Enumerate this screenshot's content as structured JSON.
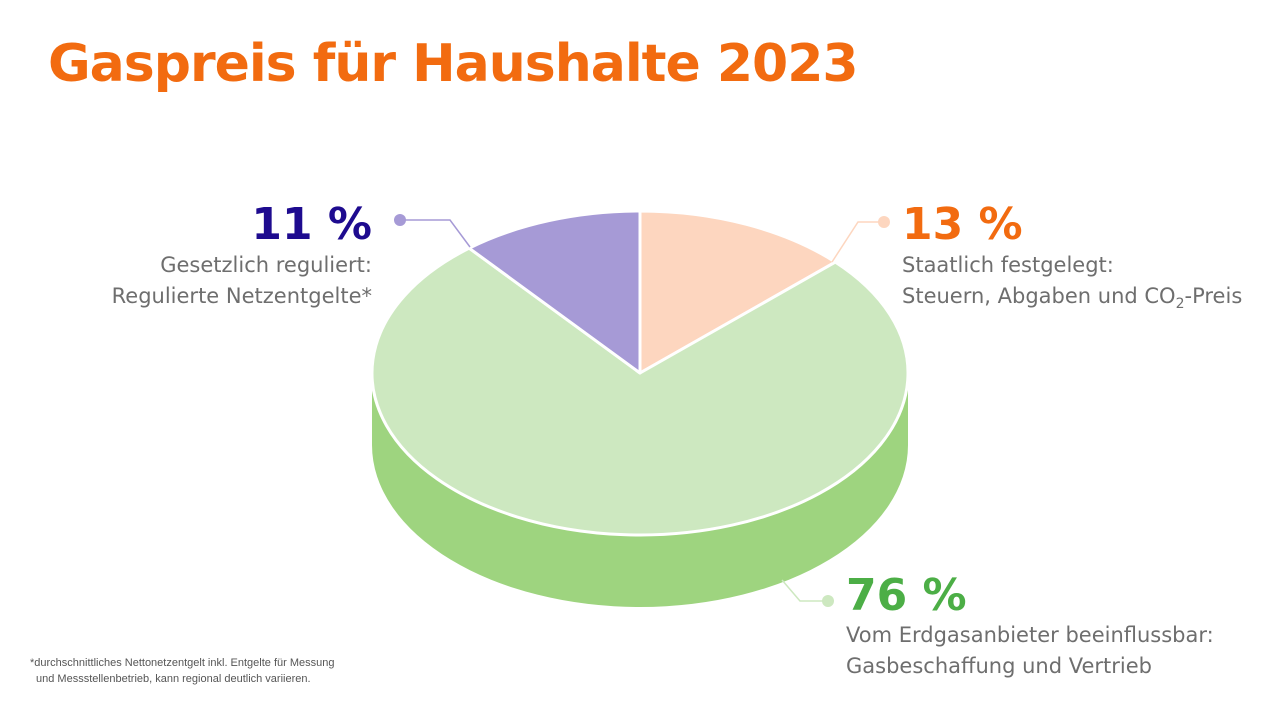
{
  "title": "Gaspreis für Haushalte 2023",
  "chart_data": {
    "type": "pie",
    "title": "Gaspreis für Haushalte 2023",
    "slices": [
      {
        "value": 13,
        "label": "13 %",
        "category": "Staatlich festgelegt:",
        "detail_before": "Steuern, Abgaben und CO",
        "detail_sub": "2",
        "detail_after": "-Preis",
        "color": "#fdd6bf",
        "label_color": "#f26b10"
      },
      {
        "value": 76,
        "label": "76 %",
        "category": "Vom Erdgasanbieter beeinflussbar:",
        "detail": "Gasbeschaffung und Vertrieb",
        "color": "#cde8c0",
        "side_color": "#9ed47f",
        "label_color": "#4cae46"
      },
      {
        "value": 11,
        "label": "11 %",
        "category": "Gesetzlich reguliert:",
        "detail": "Regulierte Netzentgelte*",
        "color": "#a69ad6",
        "label_color": "#1e0b8f"
      }
    ]
  },
  "footnote": {
    "line1": "*durchschnittliches Nettonetzentgelt inkl. Entgelte für Messung",
    "line2": "und Messstellenbetrieb, kann regional deutlich variieren."
  }
}
